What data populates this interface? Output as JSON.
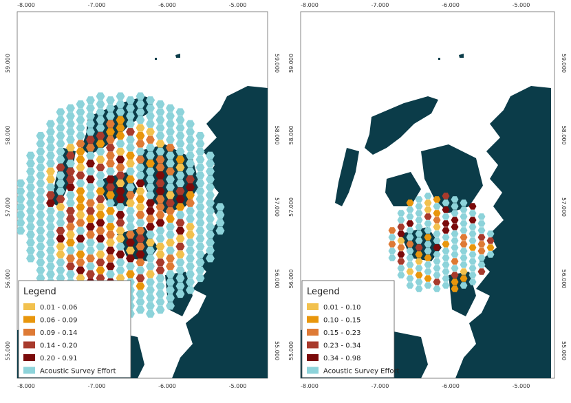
{
  "panels": [
    {
      "x_ticks": [
        "-8.000",
        "-7.000",
        "-6.000",
        "-5.000"
      ],
      "y_ticks": [
        "59.000",
        "58.000",
        "57.000",
        "56.000",
        "55.000"
      ],
      "legend": {
        "title": "Legend",
        "items": [
          {
            "label": "0.01 - 0.06",
            "color": "#f2c14e"
          },
          {
            "label": "0.06 - 0.09",
            "color": "#e8960c"
          },
          {
            "label": "0.09 - 0.14",
            "color": "#de7a35"
          },
          {
            "label": "0.14 - 0.20",
            "color": "#a83a2c"
          },
          {
            "label": "0.20 - 0.91",
            "color": "#7a0a0a"
          },
          {
            "label": "Acoustic Survey Effort",
            "color": "#8dd3da"
          }
        ]
      }
    },
    {
      "x_ticks": [
        "-8.000",
        "-7.000",
        "-6.000",
        "-5.000"
      ],
      "y_ticks": [
        "59.000",
        "58.000",
        "57.000",
        "56.000",
        "55.000"
      ],
      "legend": {
        "title": "Legend",
        "items": [
          {
            "label": "0.01 - 0.10",
            "color": "#f2c14e"
          },
          {
            "label": "0.10 - 0.15",
            "color": "#e8960c"
          },
          {
            "label": "0.15 - 0.23",
            "color": "#de7a35"
          },
          {
            "label": "0.23 - 0.34",
            "color": "#a83a2c"
          },
          {
            "label": "0.34 - 0.98",
            "color": "#7a0a0a"
          },
          {
            "label": "Acoustic Survey Effort",
            "color": "#8dd3da"
          }
        ]
      }
    }
  ]
}
